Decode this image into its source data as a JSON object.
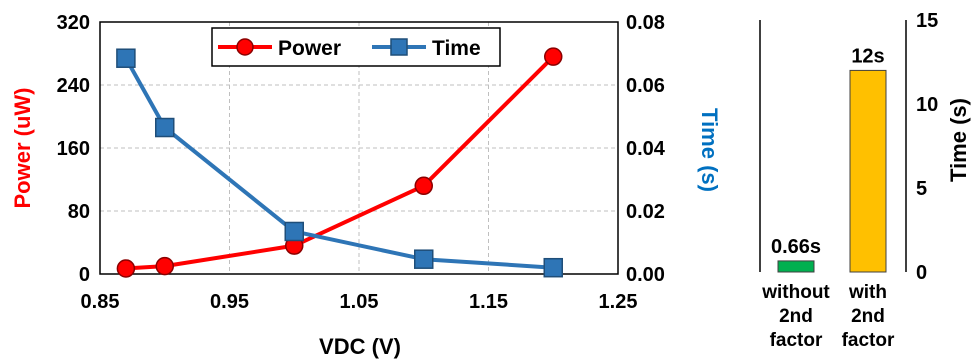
{
  "chart_data": [
    {
      "type": "line",
      "xlabel": "VDC (V)",
      "x_ticks": [
        "0.85",
        "0.95",
        "1.05",
        "1.15",
        "1.25"
      ],
      "xlim": [
        0.85,
        1.25
      ],
      "ylabel_left": "Power (uW)",
      "ylabel_left_color": "#ff0000",
      "y_left_ticks": [
        "0",
        "80",
        "160",
        "240",
        "320"
      ],
      "ylim_left": [
        0,
        320
      ],
      "ylabel_right": "Time (s)",
      "ylabel_right_color": "#0070c0",
      "y_right_ticks": [
        "0.00",
        "0.02",
        "0.04",
        "0.06",
        "0.08"
      ],
      "ylim_right": [
        0,
        0.08
      ],
      "grid": true,
      "legend_position": "top-center",
      "series": [
        {
          "name": "Power",
          "axis": "left",
          "color": "#ff0000",
          "marker": "circle",
          "x": [
            0.87,
            0.9,
            1.0,
            1.1,
            1.2
          ],
          "values": [
            7,
            10,
            36,
            112,
            276
          ]
        },
        {
          "name": "Time",
          "axis": "right",
          "color": "#2e75b6",
          "marker": "square",
          "x": [
            0.87,
            0.9,
            1.0,
            1.1,
            1.2
          ],
          "values": [
            0.0685,
            0.0465,
            0.0135,
            0.0047,
            0.002
          ]
        }
      ]
    },
    {
      "type": "bar",
      "ylabel": "Time (s)",
      "y_ticks": [
        "0",
        "5",
        "10",
        "15"
      ],
      "ylim": [
        0,
        15
      ],
      "categories": [
        [
          "without",
          "2nd",
          "factor"
        ],
        [
          "with",
          "2nd",
          "factor"
        ]
      ],
      "values": [
        0.66,
        12
      ],
      "value_labels": [
        "0.66s",
        "12s"
      ],
      "colors": [
        "#00b050",
        "#ffc000"
      ]
    }
  ]
}
